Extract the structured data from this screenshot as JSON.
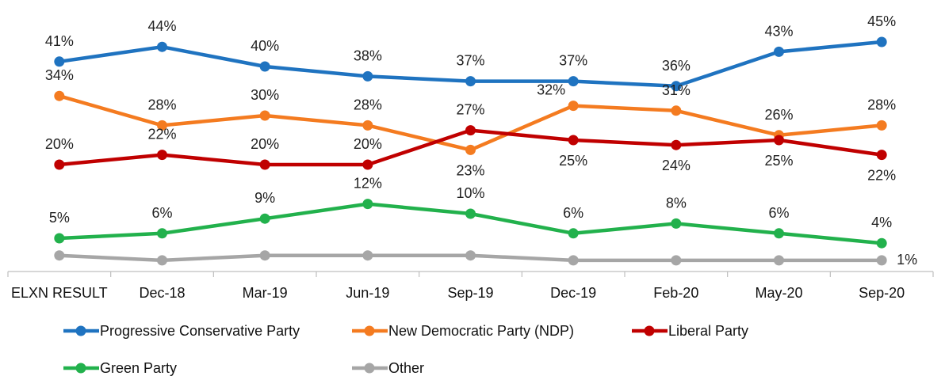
{
  "chart_data": {
    "type": "line",
    "categories": [
      "ELXN RESULT",
      "Dec-18",
      "Mar-19",
      "Jun-19",
      "Sep-19",
      "Dec-19",
      "Feb-20",
      "May-20",
      "Sep-20"
    ],
    "ylim": [
      0,
      50
    ],
    "grid": false,
    "legend_position": "bottom",
    "series": [
      {
        "name": "Progressive Conservative Party",
        "color": "#1f73c0",
        "values": [
          41,
          44,
          40,
          38,
          37,
          37,
          36,
          43,
          45
        ],
        "labels": [
          "41%",
          "44%",
          "40%",
          "38%",
          "37%",
          "37%",
          "36%",
          "43%",
          "45%"
        ],
        "label_pos": [
          "above",
          "above",
          "above",
          "above",
          "above",
          "above",
          "above",
          "above",
          "above"
        ]
      },
      {
        "name": "New Democratic Party (NDP)",
        "color": "#f47b20",
        "values": [
          34,
          28,
          30,
          28,
          23,
          32,
          31,
          26,
          28
        ],
        "labels": [
          "34%",
          "28%",
          "30%",
          "28%",
          "23%",
          "32%",
          "31%",
          "26%",
          "28%"
        ],
        "label_pos": [
          "above",
          "above",
          "above",
          "above",
          "below",
          "left-above",
          "above",
          "above",
          "above"
        ]
      },
      {
        "name": "Liberal Party",
        "color": "#c00000",
        "values": [
          20,
          22,
          20,
          20,
          27,
          25,
          24,
          25,
          22
        ],
        "labels": [
          "20%",
          "22%",
          "20%",
          "20%",
          "27%",
          "25%",
          "24%",
          "25%",
          "22%"
        ],
        "label_pos": [
          "above",
          "above",
          "above",
          "above",
          "above",
          "below",
          "below",
          "below",
          "below"
        ]
      },
      {
        "name": "Green Party",
        "color": "#22b14c",
        "values": [
          5,
          6,
          9,
          12,
          10,
          6,
          8,
          6,
          4
        ],
        "labels": [
          "5%",
          "6%",
          "9%",
          "12%",
          "10%",
          "6%",
          "8%",
          "6%",
          "4%"
        ],
        "label_pos": [
          "above",
          "above",
          "above",
          "above",
          "above",
          "above",
          "above",
          "above",
          "above"
        ]
      },
      {
        "name": "Other",
        "color": "#a6a6a6",
        "values": [
          1.5,
          0.5,
          1.5,
          1.5,
          1.5,
          0.5,
          0.5,
          0.5,
          0.5
        ],
        "labels": [
          "",
          "",
          "",
          "",
          "",
          "",
          "",
          "",
          "1%"
        ],
        "label_pos": [
          "none",
          "none",
          "none",
          "none",
          "none",
          "none",
          "none",
          "none",
          "right"
        ]
      }
    ]
  }
}
